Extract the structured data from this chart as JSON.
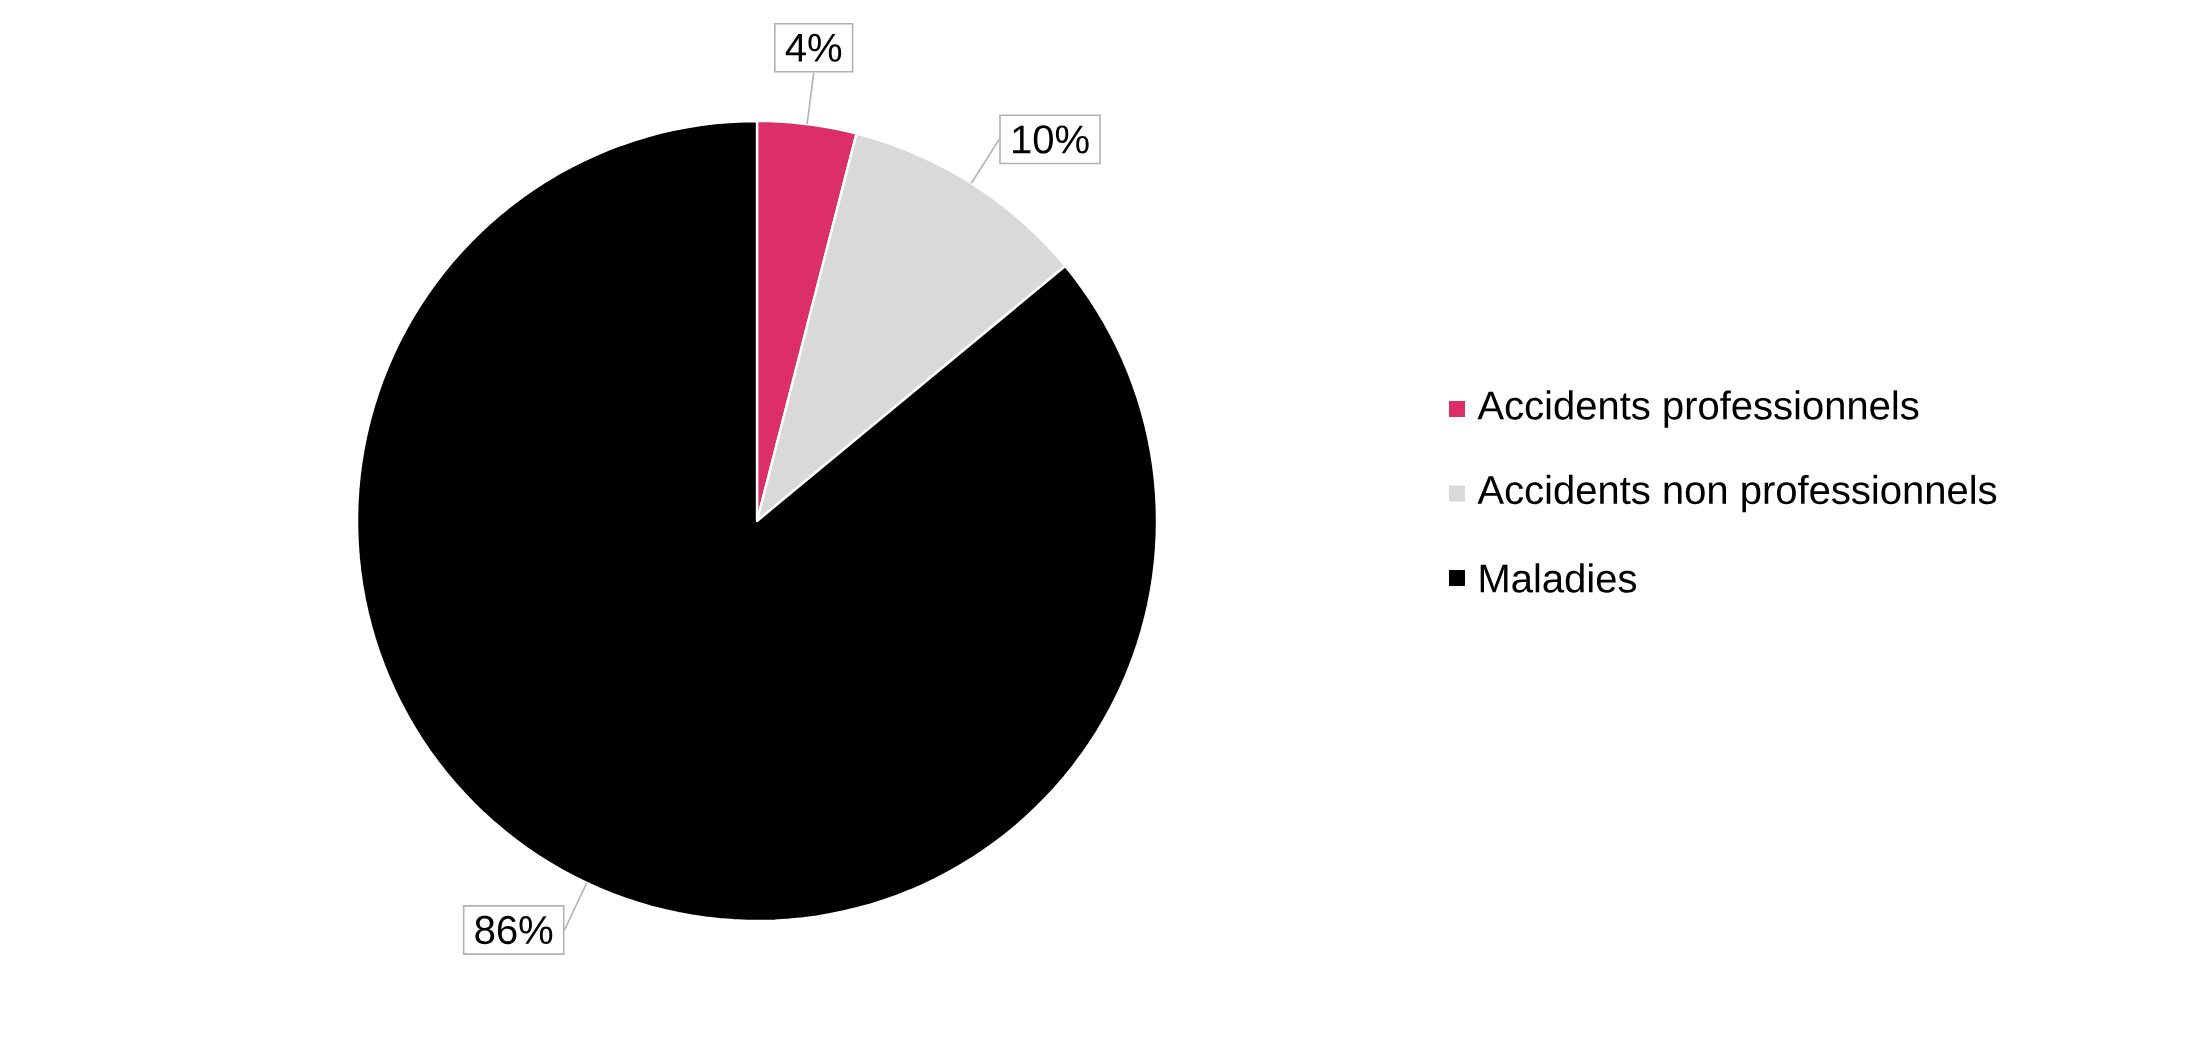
{
  "chart_data": {
    "type": "pie",
    "categories": [
      "Accidents professionnels",
      "Accidents non professionnels",
      "Maladies"
    ],
    "values": [
      4,
      10,
      86
    ],
    "colors": [
      "#dc2e68",
      "#d9d9d9",
      "#000000"
    ],
    "value_labels": [
      "4%",
      "10%",
      "86%"
    ],
    "legend": "right"
  }
}
